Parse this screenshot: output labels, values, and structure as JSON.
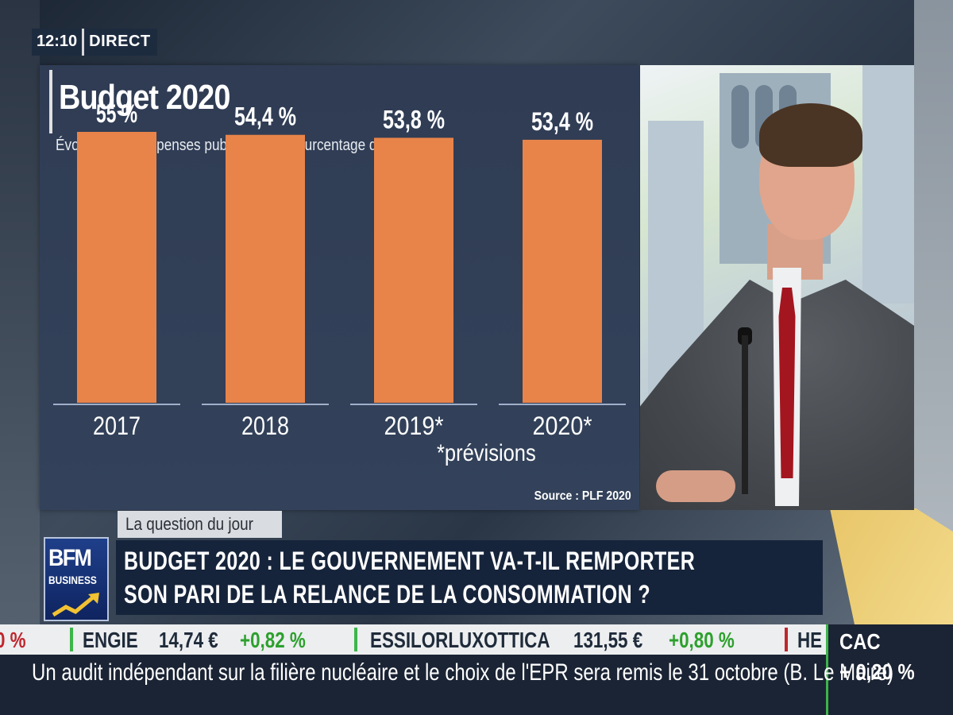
{
  "clock": {
    "time": "12:10",
    "live": "DIRECT"
  },
  "chart": {
    "title": "Budget 2020",
    "subtitle": "Évolution des dépenses publiques, en pourcentage du PIB",
    "note": "*prévisions",
    "source": "Source : PLF 2020"
  },
  "chart_data": {
    "type": "bar",
    "title": "Budget 2020",
    "subtitle": "Évolution des dépenses publiques, en pourcentage du PIB",
    "categories": [
      "2017",
      "2018",
      "2019*",
      "2020*"
    ],
    "values": [
      55,
      54.4,
      53.8,
      53.4
    ],
    "value_labels": [
      "55 %",
      "54,4 %",
      "53,8 %",
      "53,4 %"
    ],
    "unit": "%",
    "ylim": [
      0,
      60
    ],
    "grid": false,
    "bar_color": "#e8844a",
    "annotations": [
      "*prévisions"
    ],
    "source": "Source : PLF 2020"
  },
  "lower_third": {
    "tag": "La question du jour",
    "headline_line1": "BUDGET 2020 : LE GOUVERNEMENT VA-T-IL REMPORTER",
    "headline_line2": "SON PARI DE LA RELANCE DE LA CONSOMMATION ?"
  },
  "logo": {
    "line1": "BFM",
    "line2": "BUSINESS"
  },
  "ticker": {
    "fragment_start": "0 %",
    "items": [
      {
        "name": "ENGIE",
        "price": "14,74 €",
        "change": "+0,82 %"
      },
      {
        "name": "ESSILORLUXOTTICA",
        "price": "131,55 €",
        "change": "+0,80 %"
      }
    ],
    "fragment_end": "HE"
  },
  "index": {
    "name": "CAC",
    "change": "+ 0,20 %"
  },
  "crawl": {
    "text": "Un audit indépendant sur la filière nucléaire et le choix de l'EPR sera remis le 31 octobre (B. Le Maire)"
  },
  "colors": {
    "panel": "#2f3c54",
    "bar": "#e8844a",
    "headline_bg": "#16243b",
    "positive": "#2da02d",
    "negative": "#c0262d"
  }
}
